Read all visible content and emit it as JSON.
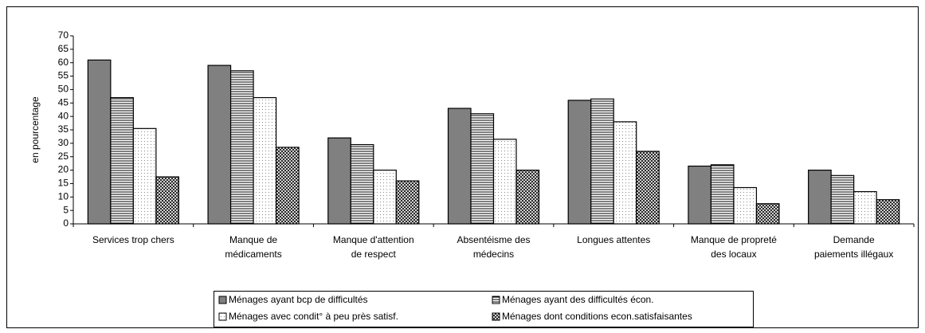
{
  "chart_data": {
    "type": "bar",
    "ylabel": "en pourcentage",
    "categories": [
      [
        "Services trop chers"
      ],
      [
        "Manque de",
        "médicaments"
      ],
      [
        "Manque d'attention",
        "de respect"
      ],
      [
        "Absentéisme des",
        "médecins"
      ],
      [
        "Longues attentes"
      ],
      [
        "Manque de propreté",
        "des locaux"
      ],
      [
        "Demande",
        "paiements illégaux"
      ]
    ],
    "series": [
      {
        "name": "Ménages ayant bcp de difficultés",
        "color": "#808080",
        "pattern": "solid",
        "values": [
          61,
          59,
          32,
          43,
          46,
          21.5,
          20
        ]
      },
      {
        "name": "Ménages ayant des difficultés écon.",
        "color": "#ffffff",
        "pattern": "hlines",
        "values": [
          47,
          57,
          29.5,
          41,
          46.5,
          22,
          18
        ]
      },
      {
        "name": "Ménages avec condit° à peu près satisf.",
        "color": "#ffffff",
        "pattern": "dots",
        "values": [
          35.5,
          47,
          20,
          31.5,
          38,
          13.5,
          12
        ]
      },
      {
        "name": "Ménages dont conditions econ.satisfaisantes",
        "color": "#ffffff",
        "pattern": "crosshatch",
        "values": [
          17.5,
          28.5,
          16,
          20,
          27,
          7.5,
          9
        ]
      }
    ],
    "ylim": [
      0,
      70
    ],
    "yticks": [
      0,
      5,
      10,
      15,
      20,
      25,
      30,
      35,
      40,
      45,
      50,
      55,
      60,
      65,
      70
    ],
    "grid": false,
    "legend": "bottom"
  }
}
